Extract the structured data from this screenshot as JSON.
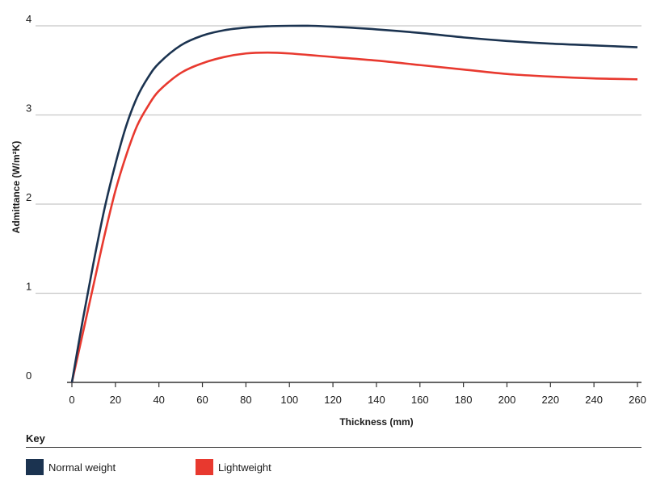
{
  "chart_data": {
    "type": "line",
    "xlabel": "Thickness (mm)",
    "ylabel": "Admittance (W/m²K)",
    "xlim": [
      0,
      260
    ],
    "ylim": [
      0,
      4
    ],
    "x_ticks": [
      "0",
      "20",
      "40",
      "60",
      "80",
      "100",
      "120",
      "140",
      "160",
      "180",
      "200",
      "220",
      "240",
      "260"
    ],
    "y_ticks": [
      "0",
      "1",
      "2",
      "3",
      "4"
    ],
    "grid": "horizontal",
    "series": [
      {
        "name": "Normal weight",
        "color": "#1b3350",
        "x": [
          0,
          5,
          10,
          15,
          20,
          25,
          30,
          35,
          40,
          50,
          60,
          70,
          80,
          90,
          100,
          110,
          120,
          140,
          160,
          180,
          200,
          220,
          240,
          260
        ],
        "y": [
          0,
          0.7,
          1.35,
          1.95,
          2.45,
          2.88,
          3.2,
          3.42,
          3.58,
          3.78,
          3.89,
          3.95,
          3.98,
          3.995,
          4.0,
          4.0,
          3.99,
          3.96,
          3.92,
          3.87,
          3.83,
          3.8,
          3.78,
          3.76
        ]
      },
      {
        "name": "Lightweight",
        "color": "#e8392f",
        "x": [
          0,
          5,
          10,
          15,
          20,
          25,
          30,
          35,
          40,
          50,
          60,
          70,
          80,
          90,
          100,
          120,
          140,
          160,
          180,
          200,
          220,
          240,
          260
        ],
        "y": [
          0,
          0.55,
          1.1,
          1.65,
          2.15,
          2.55,
          2.88,
          3.1,
          3.27,
          3.47,
          3.58,
          3.65,
          3.69,
          3.7,
          3.69,
          3.65,
          3.61,
          3.56,
          3.51,
          3.46,
          3.43,
          3.41,
          3.4
        ]
      }
    ]
  },
  "key": {
    "title": "Key",
    "items": [
      "Normal weight",
      "Lightweight"
    ]
  }
}
